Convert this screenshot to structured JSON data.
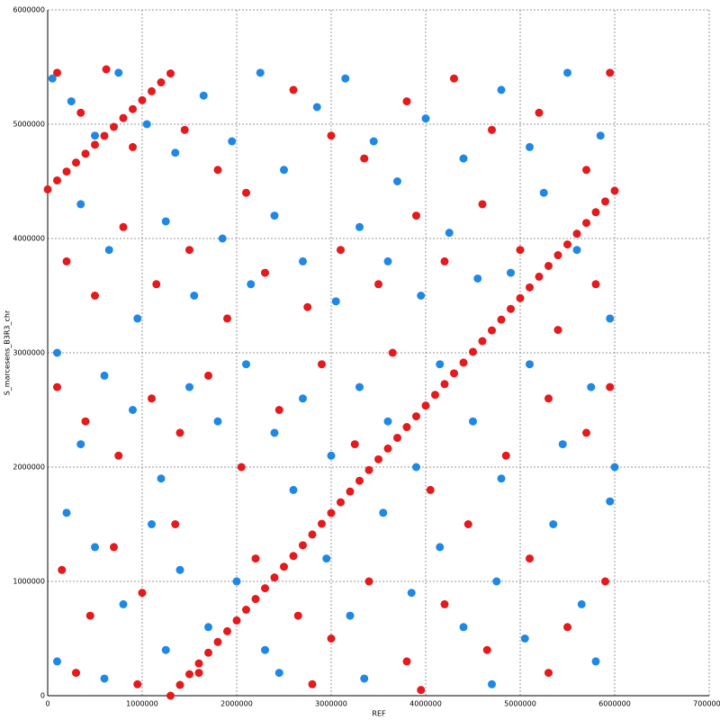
{
  "chart_data": {
    "type": "scatter",
    "x_label": "REF",
    "y_label": "S_marcesens_B3R3_chr",
    "xlim": [
      0,
      7000000
    ],
    "ylim": [
      0,
      6000000
    ],
    "xticks": [
      0,
      1000000,
      2000000,
      3000000,
      4000000,
      5000000,
      6000000,
      7000000
    ],
    "yticks": [
      0,
      1000000,
      2000000,
      3000000,
      4000000,
      5000000,
      6000000
    ],
    "grid": true,
    "series": [
      {
        "color": "#e41a1c",
        "x": [
          1300000,
          1400000,
          1500000,
          1600000,
          1700000,
          1800000,
          1900000,
          2000000,
          2100000,
          2200000,
          2300000,
          2400000,
          2500000,
          2600000,
          2700000,
          2800000,
          2900000,
          3000000,
          3100000,
          3200000,
          3300000,
          3400000,
          3500000,
          3600000,
          3700000,
          3800000,
          3900000,
          4000000,
          4100000,
          4200000,
          4300000,
          4400000,
          4500000,
          4600000,
          4700000,
          4800000,
          4900000,
          5000000,
          5100000,
          5200000,
          5300000,
          5400000,
          5500000,
          5600000,
          5700000,
          5800000,
          5900000,
          6000000,
          0,
          100000,
          200000,
          300000,
          400000,
          500000,
          600000,
          700000,
          800000,
          900000,
          1000000,
          1100000,
          1200000,
          1300000,
          100000,
          350000,
          620000,
          900000,
          1450000,
          1800000,
          2100000,
          2600000,
          3000000,
          3350000,
          3800000,
          4300000,
          4700000,
          5200000,
          5700000,
          5950000,
          200000,
          500000,
          800000,
          1150000,
          1500000,
          1900000,
          2300000,
          2750000,
          3100000,
          3500000,
          3900000,
          4200000,
          4600000,
          5000000,
          5400000,
          5800000,
          100000,
          400000,
          750000,
          1100000,
          1400000,
          1700000,
          2050000,
          2450000,
          2900000,
          3250000,
          3650000,
          4050000,
          4450000,
          4850000,
          5300000,
          5700000,
          5950000,
          150000,
          450000,
          700000,
          1000000,
          1350000,
          1600000,
          2200000,
          2650000,
          3000000,
          3400000,
          3800000,
          4200000,
          4650000,
          5100000,
          5500000,
          5900000,
          300000,
          950000,
          2800000,
          3950000,
          5300000
        ],
        "values": [
          0,
          94000,
          188000,
          282000,
          376000,
          470000,
          564000,
          658000,
          752000,
          846000,
          940000,
          1034000,
          1128000,
          1222000,
          1316000,
          1410000,
          1504000,
          1598000,
          1692000,
          1786000,
          1880000,
          1974000,
          2068000,
          2162000,
          2256000,
          2350000,
          2444000,
          2538000,
          2632000,
          2726000,
          2820000,
          2914000,
          3008000,
          3102000,
          3196000,
          3290000,
          3384000,
          3478000,
          3572000,
          3666000,
          3760000,
          3854000,
          3948000,
          4042000,
          4136000,
          4230000,
          4324000,
          4418000,
          4430000,
          4508000,
          4586000,
          4664000,
          4742000,
          4820000,
          4898000,
          4976000,
          5054000,
          5132000,
          5210000,
          5288000,
          5366000,
          5444000,
          5450000,
          5100000,
          5480000,
          4800000,
          4950000,
          4600000,
          4400000,
          5300000,
          4900000,
          4700000,
          5200000,
          5400000,
          4950000,
          5100000,
          4600000,
          5450000,
          3800000,
          3500000,
          4100000,
          3600000,
          3900000,
          3300000,
          3700000,
          3400000,
          3900000,
          3600000,
          4200000,
          3800000,
          4300000,
          3900000,
          3200000,
          3600000,
          2700000,
          2400000,
          2100000,
          2600000,
          2300000,
          2800000,
          2000000,
          2500000,
          2900000,
          2200000,
          3000000,
          1800000,
          1500000,
          2100000,
          2600000,
          2300000,
          2700000,
          1100000,
          700000,
          1300000,
          900000,
          1500000,
          200000,
          1200000,
          700000,
          500000,
          1000000,
          300000,
          800000,
          400000,
          1200000,
          600000,
          1000000,
          200000,
          100000,
          100000,
          50000,
          200000
        ]
      },
      {
        "color": "#1f88e5",
        "x": [
          50000,
          250000,
          500000,
          750000,
          1050000,
          1350000,
          1650000,
          1950000,
          2250000,
          2500000,
          2850000,
          3150000,
          3450000,
          3700000,
          4000000,
          4400000,
          4800000,
          5100000,
          5500000,
          5850000,
          350000,
          650000,
          950000,
          1250000,
          1550000,
          1850000,
          2150000,
          2400000,
          2700000,
          3050000,
          3300000,
          3600000,
          3950000,
          4250000,
          4550000,
          4900000,
          5250000,
          5600000,
          5950000,
          100000,
          350000,
          600000,
          900000,
          1200000,
          1500000,
          1800000,
          2100000,
          2400000,
          2700000,
          3000000,
          3300000,
          3600000,
          3900000,
          4150000,
          4500000,
          4800000,
          5100000,
          5450000,
          5750000,
          6000000,
          200000,
          500000,
          800000,
          1100000,
          1400000,
          1700000,
          2000000,
          2300000,
          2600000,
          2950000,
          3200000,
          3550000,
          3850000,
          4150000,
          4400000,
          4750000,
          5050000,
          5350000,
          5650000,
          5950000,
          100000,
          600000,
          1250000,
          2450000,
          3350000,
          4700000,
          5800000
        ],
        "values": [
          5400000,
          5200000,
          4900000,
          5450000,
          5000000,
          4750000,
          5250000,
          4850000,
          5450000,
          4600000,
          5150000,
          5400000,
          4850000,
          4500000,
          5050000,
          4700000,
          5300000,
          4800000,
          5450000,
          4900000,
          4300000,
          3900000,
          3300000,
          4150000,
          3500000,
          4000000,
          3600000,
          4200000,
          3800000,
          3450000,
          4100000,
          3800000,
          3500000,
          4050000,
          3650000,
          3700000,
          4400000,
          3900000,
          3300000,
          3000000,
          2200000,
          2800000,
          2500000,
          1900000,
          2700000,
          2400000,
          2900000,
          2300000,
          2600000,
          2100000,
          2700000,
          2400000,
          2000000,
          2900000,
          2400000,
          1900000,
          2900000,
          2200000,
          2700000,
          2000000,
          1600000,
          1300000,
          800000,
          1500000,
          1100000,
          600000,
          1000000,
          400000,
          1800000,
          1200000,
          700000,
          1600000,
          900000,
          1300000,
          600000,
          1000000,
          500000,
          1500000,
          800000,
          1700000,
          300000,
          150000,
          400000,
          200000,
          150000,
          100000,
          300000
        ]
      }
    ]
  }
}
